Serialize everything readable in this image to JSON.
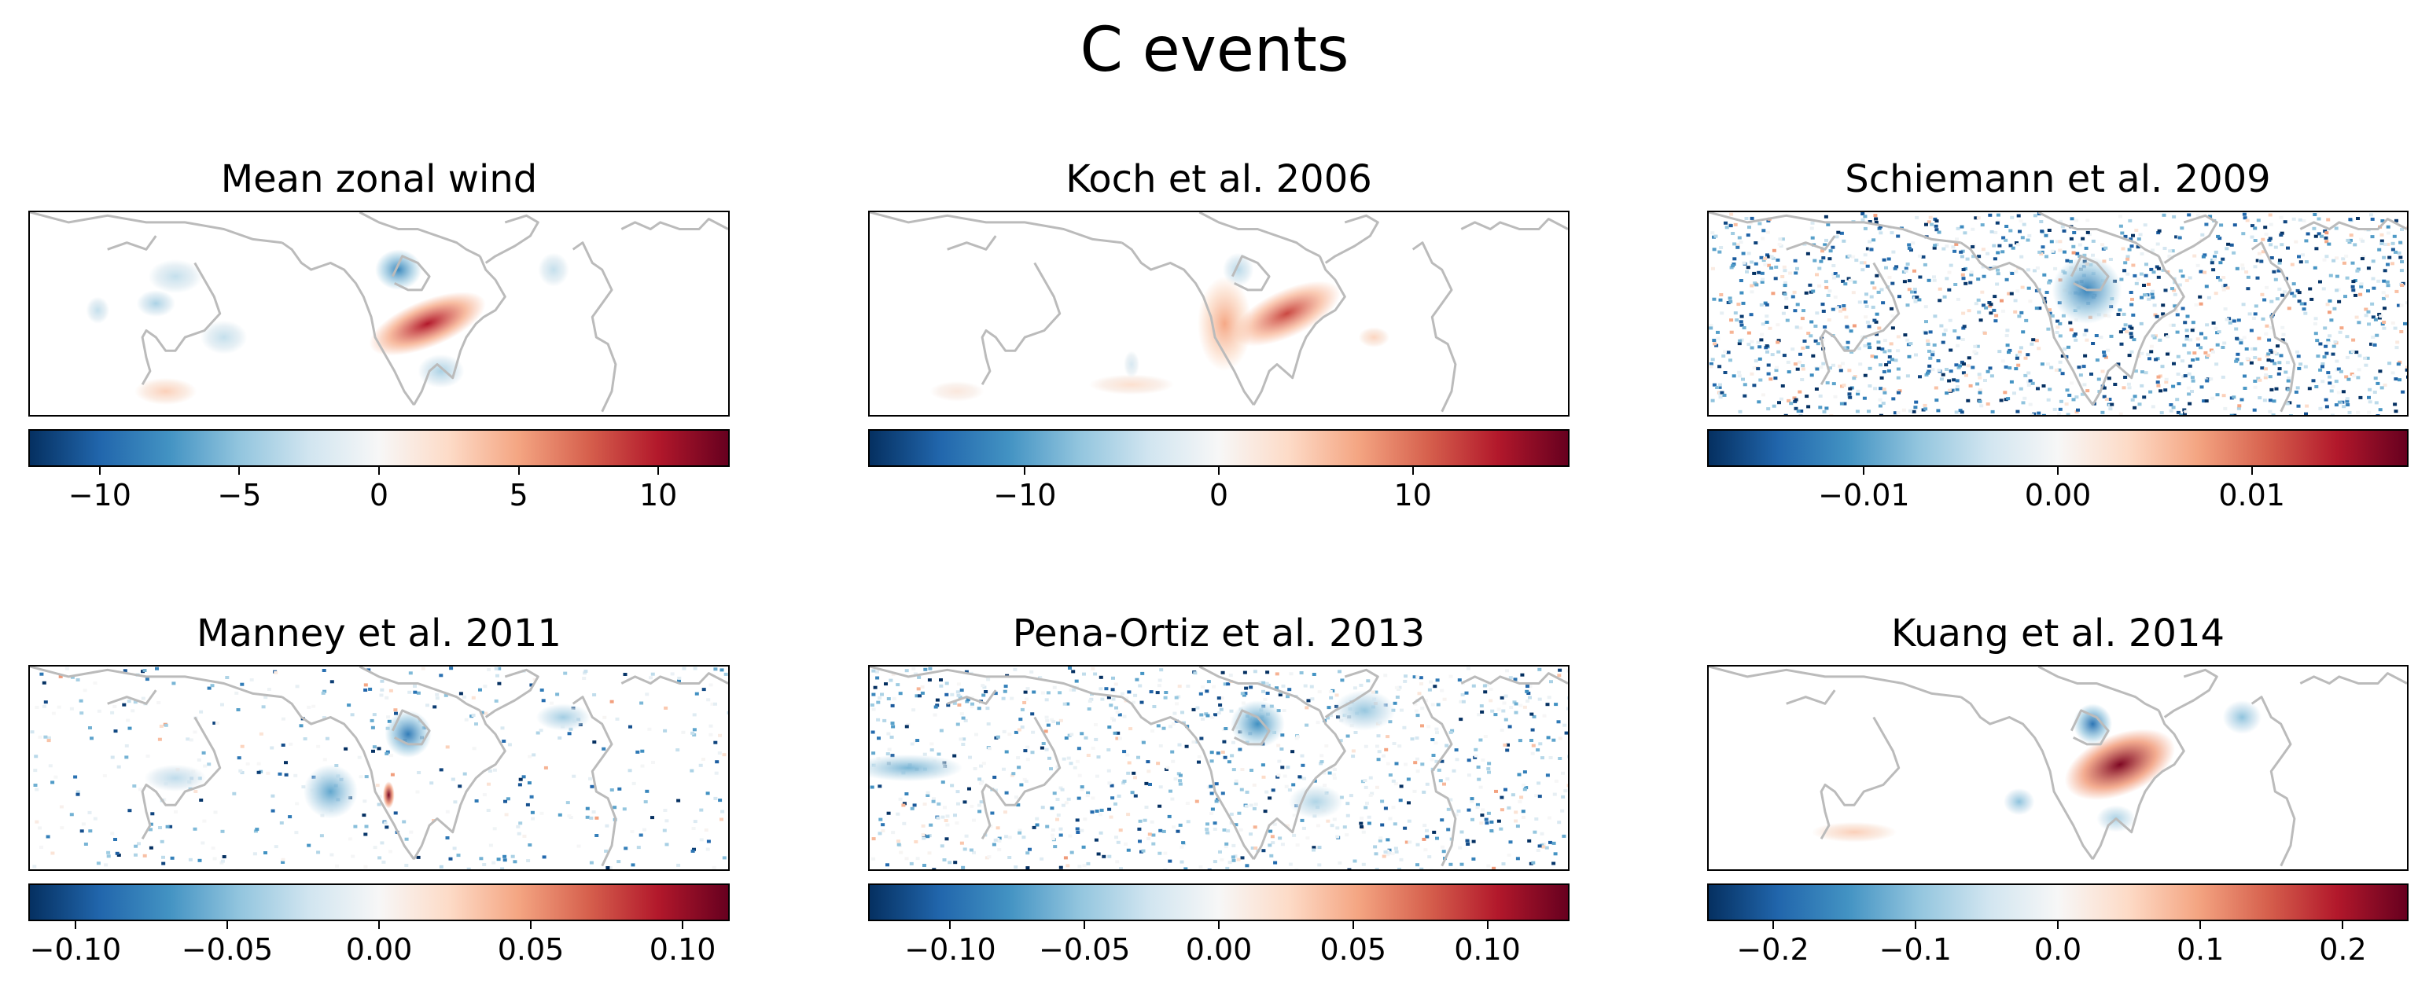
{
  "title": "C events",
  "colormap": [
    "#053061",
    "#2166ac",
    "#4393c3",
    "#92c5de",
    "#d1e5f0",
    "#f7f7f7",
    "#fddbc7",
    "#f4a582",
    "#d6604d",
    "#b2182b",
    "#67001f"
  ],
  "coastline_color": "#bbbbbb",
  "chart_data": [
    {
      "type": "heatmap",
      "title": "Mean zonal wind",
      "colorbar": {
        "vmin": -12.5,
        "vmax": 12.5,
        "ticks": [
          -10,
          -5,
          0,
          5,
          10
        ],
        "tick_labels": [
          "−10",
          "−5",
          "0",
          "5",
          "10"
        ]
      },
      "features": [
        {
          "lon": 135,
          "lat": 56,
          "value": -3,
          "w": 14,
          "h": 5,
          "kind": "blob"
        },
        {
          "lon": 125,
          "lat": 48,
          "value": -4,
          "w": 10,
          "h": 4,
          "kind": "blob"
        },
        {
          "lon": 95,
          "lat": 46,
          "value": -3,
          "w": 6,
          "h": 4,
          "kind": "blob"
        },
        {
          "lon": 160,
          "lat": 38,
          "value": -3,
          "w": 12,
          "h": 5,
          "kind": "blob"
        },
        {
          "lon": 250,
          "lat": 58,
          "value": -8,
          "w": 12,
          "h": 6,
          "kind": "blob"
        },
        {
          "lon": 330,
          "lat": 58,
          "value": -3,
          "w": 8,
          "h": 5,
          "kind": "blob"
        },
        {
          "lon": 272,
          "lat": 28,
          "value": -4,
          "w": 12,
          "h": 5,
          "kind": "blob"
        },
        {
          "lon": 130,
          "lat": 22,
          "value": 3,
          "w": 16,
          "h": 4,
          "kind": "blob"
        },
        {
          "lon": 265,
          "lat": 42,
          "value": 10,
          "w": 32,
          "h": 7,
          "kind": "streak",
          "angle": -22
        }
      ]
    },
    {
      "type": "heatmap",
      "title": "Koch et al. 2006",
      "colorbar": {
        "vmin": -18,
        "vmax": 18,
        "ticks": [
          -10,
          0,
          10
        ],
        "tick_labels": [
          "−10",
          "0",
          "10"
        ]
      },
      "features": [
        {
          "lon": 250,
          "lat": 58,
          "value": -5,
          "w": 8,
          "h": 5,
          "kind": "blob"
        },
        {
          "lon": 195,
          "lat": 24,
          "value": 3,
          "w": 22,
          "h": 3,
          "kind": "blob"
        },
        {
          "lon": 105,
          "lat": 22,
          "value": 2,
          "w": 14,
          "h": 3,
          "kind": "blob"
        },
        {
          "lon": 243,
          "lat": 42,
          "value": 7,
          "w": 14,
          "h": 14,
          "kind": "blob"
        },
        {
          "lon": 275,
          "lat": 45,
          "value": 12,
          "w": 30,
          "h": 7,
          "kind": "streak",
          "angle": -25
        },
        {
          "lon": 320,
          "lat": 38,
          "value": 4,
          "w": 8,
          "h": 3,
          "kind": "blob"
        },
        {
          "lon": 195,
          "lat": 30,
          "value": -3,
          "w": 4,
          "h": 4,
          "kind": "blob"
        }
      ]
    },
    {
      "type": "heatmap",
      "title": "Schiemann et al. 2009",
      "colorbar": {
        "vmin": -0.018,
        "vmax": 0.018,
        "ticks": [
          -0.01,
          0.0,
          0.01
        ],
        "tick_labels": [
          "−0.01",
          "0.00",
          "0.01"
        ]
      },
      "features": [
        {
          "lon": 255,
          "lat": 52,
          "value": -0.012,
          "w": 18,
          "h": 10,
          "kind": "blob"
        }
      ]
    },
    {
      "type": "heatmap",
      "title": "Manney et al. 2011",
      "colorbar": {
        "vmin": -0.115,
        "vmax": 0.115,
        "ticks": [
          -0.1,
          -0.05,
          0.0,
          0.05,
          0.1
        ],
        "tick_labels": [
          "−0.10",
          "−0.05",
          "0.00",
          "0.05",
          "0.10"
        ]
      },
      "features": [
        {
          "lon": 255,
          "lat": 55,
          "value": -0.08,
          "w": 12,
          "h": 7,
          "kind": "blob"
        },
        {
          "lon": 215,
          "lat": 38,
          "value": -0.06,
          "w": 14,
          "h": 8,
          "kind": "blob"
        },
        {
          "lon": 135,
          "lat": 42,
          "value": -0.03,
          "w": 16,
          "h": 4,
          "kind": "blob"
        },
        {
          "lon": 335,
          "lat": 60,
          "value": -0.04,
          "w": 14,
          "h": 4,
          "kind": "blob"
        },
        {
          "lon": 245,
          "lat": 37,
          "value": 0.11,
          "w": 3,
          "h": 4,
          "kind": "blob"
        }
      ]
    },
    {
      "type": "heatmap",
      "title": "Pena-Ortiz et al. 2013",
      "colorbar": {
        "vmin": -0.13,
        "vmax": 0.13,
        "ticks": [
          -0.1,
          -0.05,
          0.0,
          0.05,
          0.1
        ],
        "tick_labels": [
          "−0.10",
          "−0.05",
          "0.00",
          "0.05",
          "0.10"
        ]
      },
      "features": [
        {
          "lon": 260,
          "lat": 58,
          "value": -0.08,
          "w": 14,
          "h": 7,
          "kind": "blob"
        },
        {
          "lon": 80,
          "lat": 45,
          "value": -0.06,
          "w": 28,
          "h": 4,
          "kind": "blob"
        },
        {
          "lon": 315,
          "lat": 62,
          "value": -0.05,
          "w": 16,
          "h": 6,
          "kind": "blob"
        },
        {
          "lon": 290,
          "lat": 35,
          "value": -0.04,
          "w": 14,
          "h": 5,
          "kind": "blob"
        }
      ]
    },
    {
      "type": "heatmap",
      "title": "Kuang et al. 2014",
      "colorbar": {
        "vmin": -0.245,
        "vmax": 0.245,
        "ticks": [
          -0.2,
          -0.1,
          0.0,
          0.1,
          0.2
        ],
        "tick_labels": [
          "−0.2",
          "−0.1",
          "0.0",
          "0.1",
          "0.2"
        ]
      },
      "features": [
        {
          "lon": 258,
          "lat": 58,
          "value": -0.18,
          "w": 10,
          "h": 6,
          "kind": "blob"
        },
        {
          "lon": 335,
          "lat": 60,
          "value": -0.1,
          "w": 10,
          "h": 5,
          "kind": "blob"
        },
        {
          "lon": 220,
          "lat": 35,
          "value": -0.1,
          "w": 8,
          "h": 4,
          "kind": "blob"
        },
        {
          "lon": 270,
          "lat": 30,
          "value": -0.08,
          "w": 10,
          "h": 4,
          "kind": "blob"
        },
        {
          "lon": 135,
          "lat": 26,
          "value": 0.06,
          "w": 22,
          "h": 3,
          "kind": "blob"
        },
        {
          "lon": 272,
          "lat": 46,
          "value": 0.23,
          "w": 30,
          "h": 9,
          "kind": "streak",
          "angle": -22
        }
      ]
    }
  ]
}
